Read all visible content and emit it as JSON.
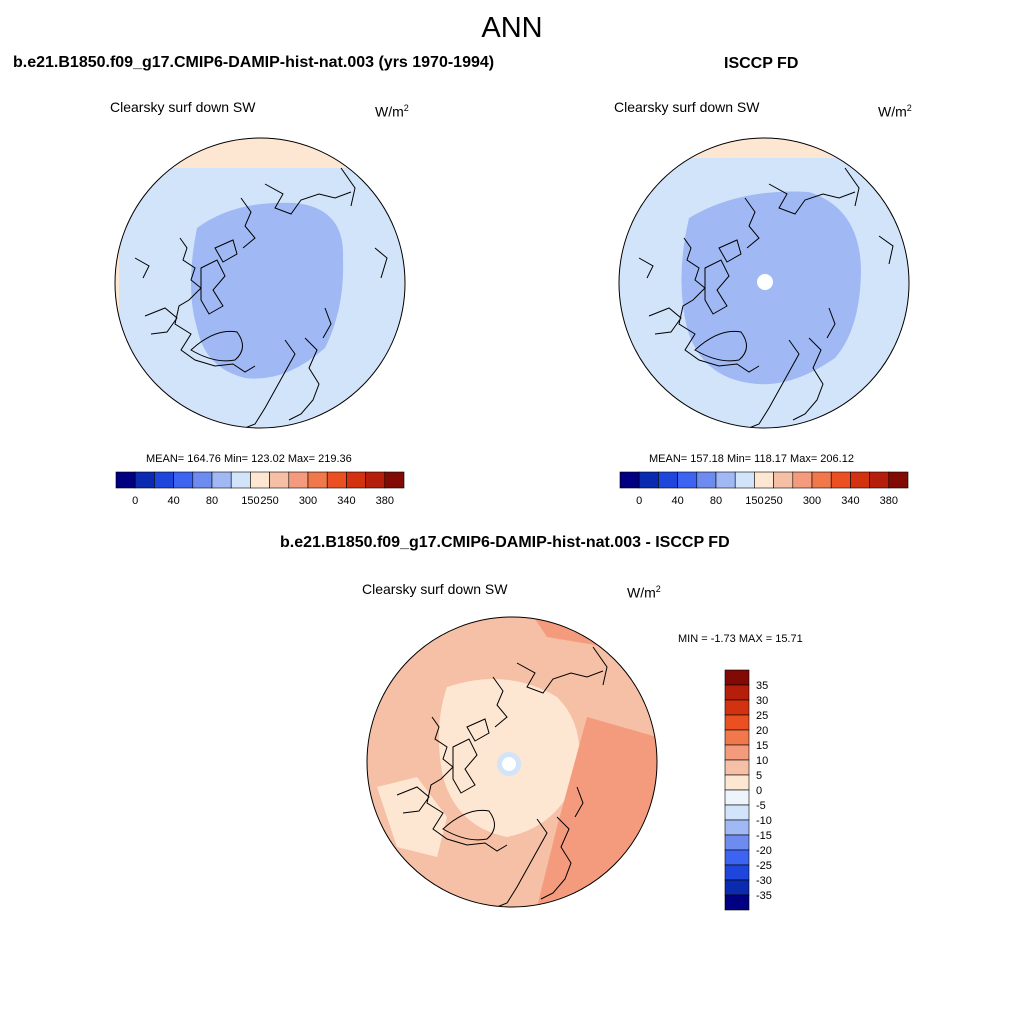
{
  "title": "ANN",
  "panels": [
    {
      "id": "model",
      "header": "b.e21.B1850.f09_g17.CMIP6-DAMIP-hist-nat.003 (yrs 1970-1994)",
      "subtitle": "Clearsky surf down SW",
      "units_base": "W/m",
      "units_exp": "2",
      "stats": "MEAN= 164.76  Min= 123.02  Max= 219.36"
    },
    {
      "id": "obs",
      "header": "ISCCP FD",
      "subtitle": "Clearsky surf down SW",
      "units_base": "W/m",
      "units_exp": "2",
      "stats": "MEAN= 157.18  Min= 118.17  Max= 206.12"
    },
    {
      "id": "diff",
      "header": "b.e21.B1850.f09_g17.CMIP6-DAMIP-hist-nat.003 - ISCCP FD",
      "subtitle": "Clearsky surf down SW",
      "units_base": "W/m",
      "units_exp": "2",
      "stats": "MIN =  -1.73 MAX =  15.71"
    }
  ],
  "colors": {
    "abs_scale": [
      "#000080",
      "#0a2ab0",
      "#1e46dc",
      "#3c64f0",
      "#6e8cf0",
      "#a0b9f5",
      "#d2e4fa",
      "#fde6d2",
      "#f5c0a5",
      "#f59b7d",
      "#f0784b",
      "#eb5023",
      "#d2320f",
      "#b41e0a",
      "#820a05"
    ],
    "diff_scale": [
      "#000080",
      "#0a2ab0",
      "#1e46dc",
      "#3c64f0",
      "#6e8cf0",
      "#a0b9f5",
      "#d2e4fa",
      "#eef4fb",
      "#fde6d2",
      "#f5c0a5",
      "#f59b7d",
      "#f0784b",
      "#eb5023",
      "#d2320f",
      "#b41e0a",
      "#820a05"
    ]
  },
  "chart_data": [
    {
      "type": "heatmap",
      "projection": "north polar stereographic",
      "title": "Clearsky surf down SW",
      "units": "W/m2",
      "mean": 164.76,
      "min": 123.02,
      "max": 219.36,
      "colorbar_ticks": [
        "0",
        "40",
        "80",
        "150",
        "250",
        "300",
        "340",
        "380"
      ]
    },
    {
      "type": "heatmap",
      "projection": "north polar stereographic",
      "title": "Clearsky surf down SW",
      "units": "W/m2",
      "mean": 157.18,
      "min": 118.17,
      "max": 206.12,
      "colorbar_ticks": [
        "0",
        "40",
        "80",
        "150",
        "250",
        "300",
        "340",
        "380"
      ]
    },
    {
      "type": "heatmap",
      "projection": "north polar stereographic",
      "title": "Clearsky surf down SW",
      "units": "W/m2",
      "min": -1.73,
      "max": 15.71,
      "colorbar_ticks": [
        "35",
        "30",
        "25",
        "20",
        "15",
        "10",
        "5",
        "0",
        "-5",
        "-10",
        "-15",
        "-20",
        "-25",
        "-30",
        "-35"
      ]
    }
  ]
}
